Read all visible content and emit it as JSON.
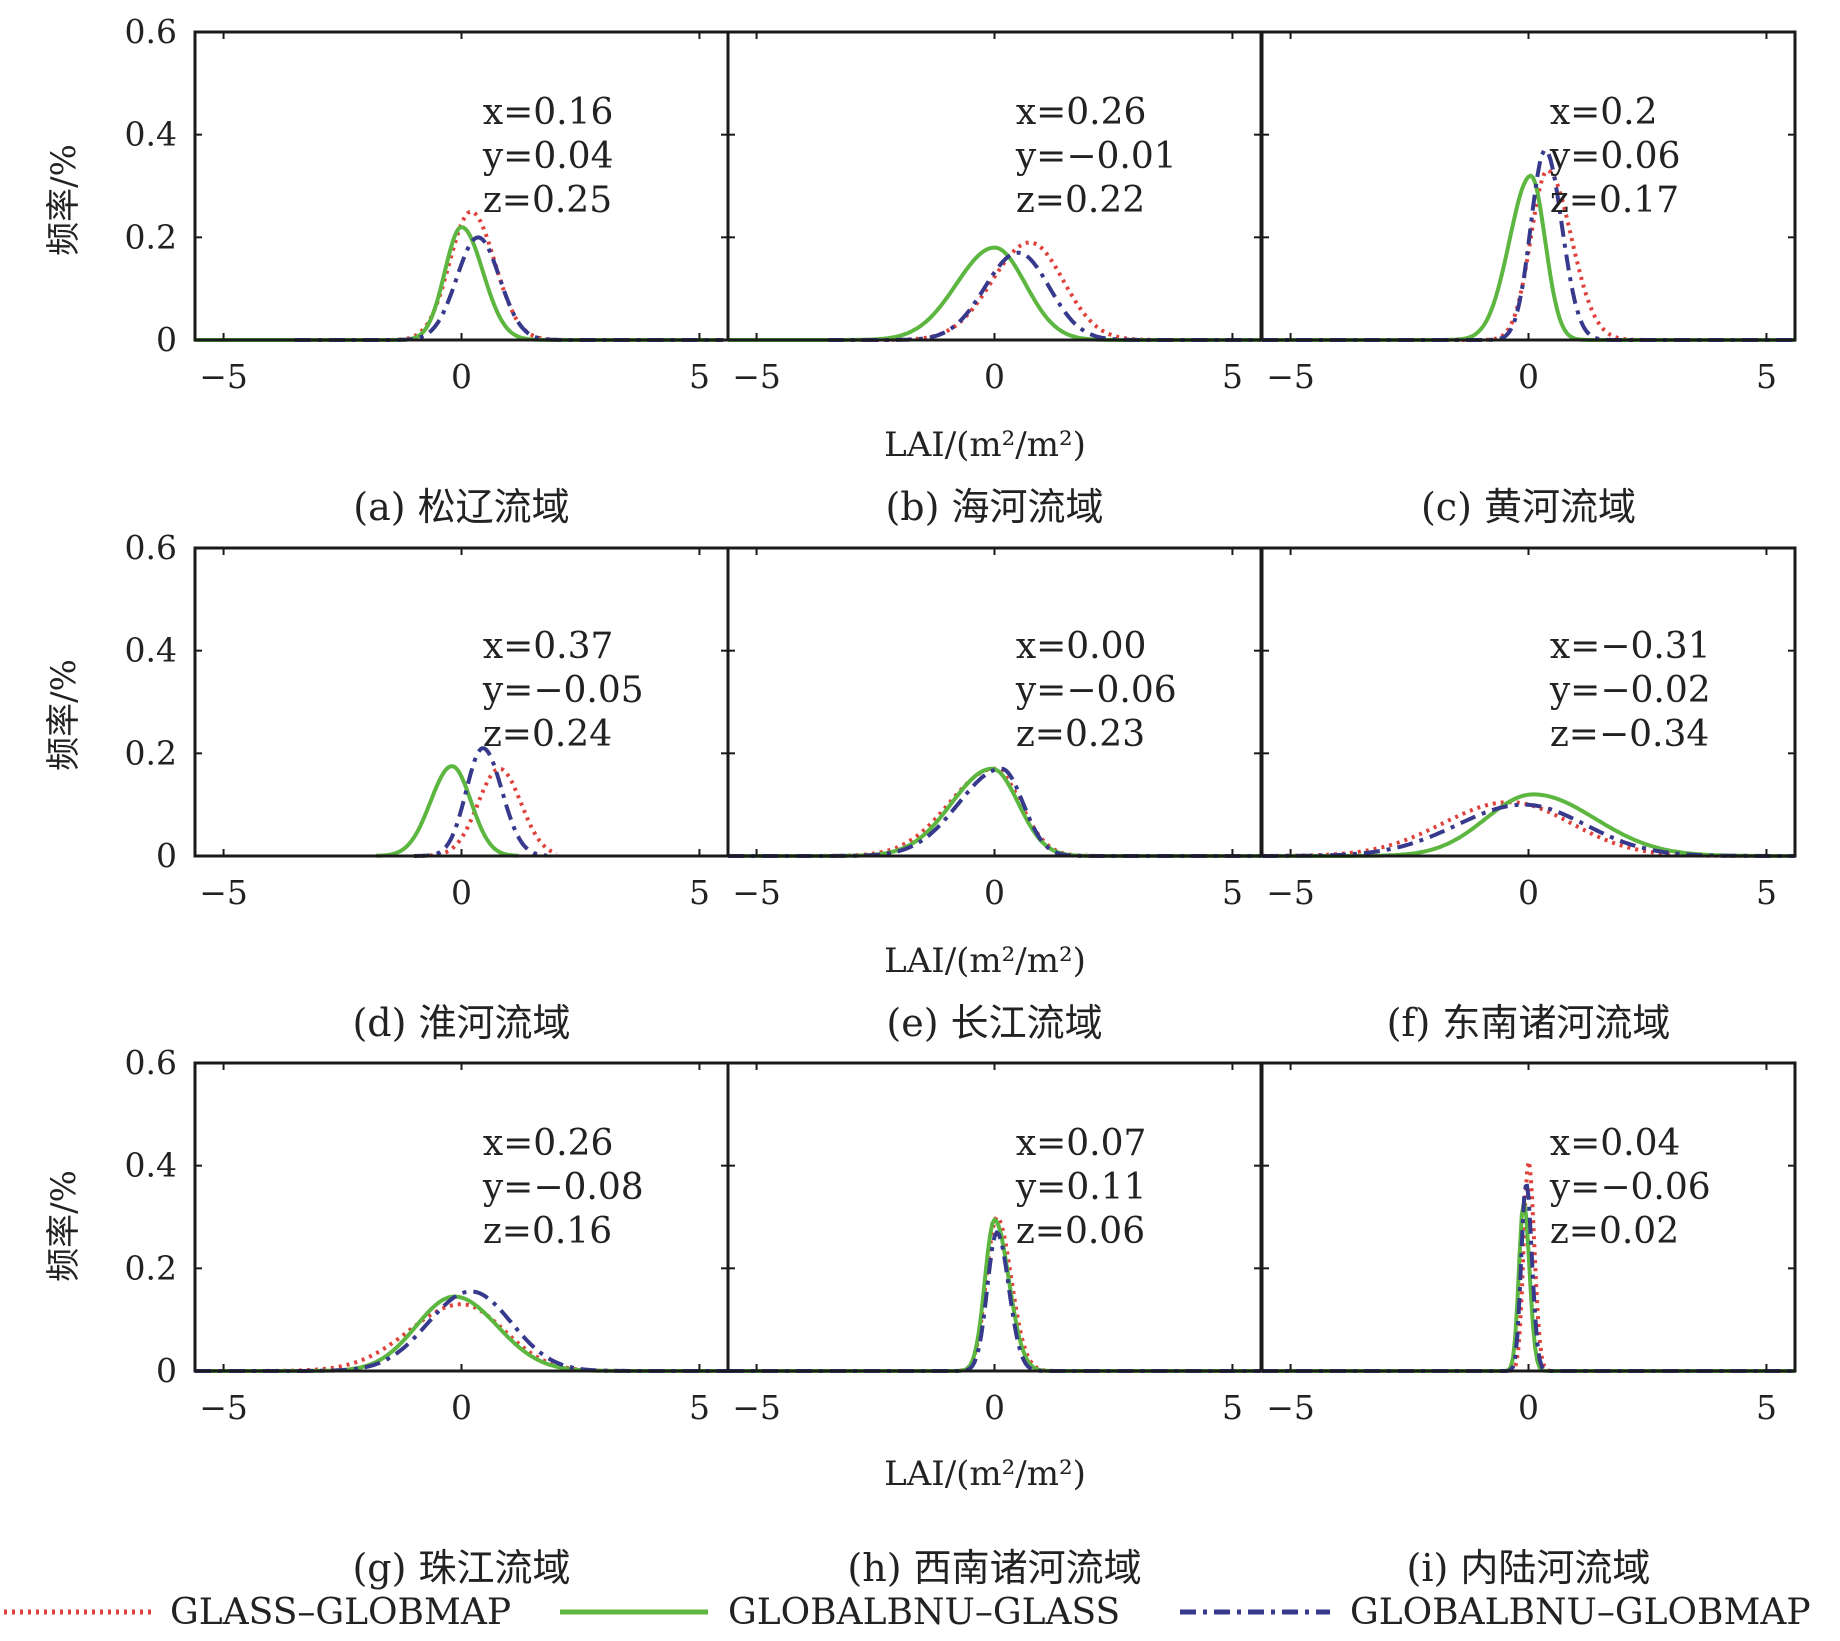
{
  "figure": {
    "y_label": "频率/%",
    "x_label": "LAI/(m²/m²)",
    "legend": [
      {
        "label": "GLASS–GLOBMAP",
        "color": "#e0413a",
        "style": "dotted"
      },
      {
        "label": "GLOBALBNU–GLASS",
        "color": "#5cb640",
        "style": "solid"
      },
      {
        "label": "GLOBALBNU–GLOBMAP",
        "color": "#36398c",
        "style": "dashdot"
      }
    ]
  },
  "chart_data": [
    {
      "type": "line",
      "caption": "(a) 松辽流域",
      "xlim": [
        -5.6,
        5.6
      ],
      "ylim": [
        0,
        0.6
      ],
      "xticks": [
        "−5",
        "0",
        "5"
      ],
      "yticks": [
        "0",
        "0.2",
        "0.4",
        "0.6"
      ],
      "stats": [
        "x=0.16",
        "y=0.04",
        "z=0.25"
      ],
      "series": [
        {
          "name": "GLASS–GLOBMAP",
          "peak_x": 0.2,
          "peak_y": 0.25,
          "width_left": 0.45,
          "width_right": 0.5,
          "range": [
            -3.5,
            5.5
          ]
        },
        {
          "name": "GLOBALBNU–GLASS",
          "peak_x": 0.0,
          "peak_y": 0.22,
          "width_left": 0.35,
          "width_right": 0.45,
          "range": [
            -5.6,
            5.5
          ]
        },
        {
          "name": "GLOBALBNU–GLOBMAP",
          "peak_x": 0.35,
          "peak_y": 0.2,
          "width_left": 0.45,
          "width_right": 0.45,
          "range": [
            -3.5,
            5.5
          ]
        }
      ]
    },
    {
      "type": "line",
      "caption": "(b) 海河流域",
      "xlim": [
        -5.6,
        5.6
      ],
      "ylim": [
        0,
        0.6
      ],
      "xticks": [
        "−5",
        "0",
        "5"
      ],
      "yticks": [
        "0",
        "0.2",
        "0.4",
        "0.6"
      ],
      "stats": [
        "x=0.26",
        "y=−0.01",
        "z=0.22"
      ],
      "series": [
        {
          "name": "GLASS–GLOBMAP",
          "peak_x": 0.75,
          "peak_y": 0.19,
          "width_left": 0.8,
          "width_right": 0.7,
          "range": [
            -3.5,
            5.6
          ]
        },
        {
          "name": "GLOBALBNU–GLASS",
          "peak_x": 0.0,
          "peak_y": 0.18,
          "width_left": 0.8,
          "width_right": 0.65,
          "range": [
            -5.6,
            5.6
          ]
        },
        {
          "name": "GLOBALBNU–GLOBMAP",
          "peak_x": 0.5,
          "peak_y": 0.17,
          "width_left": 0.7,
          "width_right": 0.65,
          "range": [
            -3.5,
            5.6
          ]
        }
      ]
    },
    {
      "type": "line",
      "caption": "(c) 黄河流域",
      "xlim": [
        -5.6,
        5.6
      ],
      "ylim": [
        0,
        0.6
      ],
      "xticks": [
        "−5",
        "0",
        "5"
      ],
      "yticks": [
        "0",
        "0.2",
        "0.4",
        "0.6"
      ],
      "stats": [
        "x=0.2",
        "y=0.06",
        "z=0.17"
      ],
      "series": [
        {
          "name": "GLASS–GLOBMAP",
          "peak_x": 0.4,
          "peak_y": 0.33,
          "width_left": 0.35,
          "width_right": 0.5,
          "range": [
            -5.6,
            5.6
          ]
        },
        {
          "name": "GLOBALBNU–GLASS",
          "peak_x": 0.05,
          "peak_y": 0.32,
          "width_left": 0.45,
          "width_right": 0.3,
          "range": [
            -5.6,
            5.6
          ]
        },
        {
          "name": "GLOBALBNU–GLOBMAP",
          "peak_x": 0.35,
          "peak_y": 0.37,
          "width_left": 0.3,
          "width_right": 0.35,
          "range": [
            -5.6,
            5.6
          ]
        }
      ]
    },
    {
      "type": "line",
      "caption": "(d) 淮河流域",
      "xlim": [
        -5.6,
        5.6
      ],
      "ylim": [
        0,
        0.6
      ],
      "xticks": [
        "−5",
        "0",
        "5"
      ],
      "yticks": [
        "0",
        "0.2",
        "0.4",
        "0.6"
      ],
      "stats": [
        "x=0.37",
        "y=−0.05",
        "z=0.24"
      ],
      "series": [
        {
          "name": "GLASS–GLOBMAP",
          "peak_x": 0.8,
          "peak_y": 0.17,
          "width_left": 0.45,
          "width_right": 0.45,
          "range": [
            -1.0,
            2.0
          ]
        },
        {
          "name": "GLOBALBNU–GLASS",
          "peak_x": -0.2,
          "peak_y": 0.175,
          "width_left": 0.45,
          "width_right": 0.4,
          "range": [
            -1.8,
            1.2
          ]
        },
        {
          "name": "GLOBALBNU–GLOBMAP",
          "peak_x": 0.45,
          "peak_y": 0.21,
          "width_left": 0.35,
          "width_right": 0.4,
          "range": [
            -1.0,
            1.8
          ]
        }
      ]
    },
    {
      "type": "line",
      "caption": "(e) 长江流域",
      "xlim": [
        -5.6,
        5.6
      ],
      "ylim": [
        0,
        0.6
      ],
      "xticks": [
        "−5",
        "0",
        "5"
      ],
      "yticks": [
        "0",
        "0.2",
        "0.4",
        "0.6"
      ],
      "stats": [
        "x=0.00",
        "y=−0.06",
        "z=0.23"
      ],
      "series": [
        {
          "name": "GLASS–GLOBMAP",
          "peak_x": 0.0,
          "peak_y": 0.17,
          "width_left": 0.95,
          "width_right": 0.55,
          "range": [
            -5.6,
            5.6
          ]
        },
        {
          "name": "GLOBALBNU–GLASS",
          "peak_x": -0.05,
          "peak_y": 0.17,
          "width_left": 0.85,
          "width_right": 0.55,
          "range": [
            -5.6,
            5.6
          ]
        },
        {
          "name": "GLOBALBNU–GLOBMAP",
          "peak_x": 0.15,
          "peak_y": 0.17,
          "width_left": 0.9,
          "width_right": 0.45,
          "range": [
            -5.6,
            5.6
          ]
        }
      ]
    },
    {
      "type": "line",
      "caption": "(f) 东南诸河流域",
      "xlim": [
        -5.6,
        5.6
      ],
      "ylim": [
        0,
        0.6
      ],
      "xticks": [
        "−5",
        "0",
        "5"
      ],
      "yticks": [
        "0",
        "0.2",
        "0.4",
        "0.6"
      ],
      "stats": [
        "x=−0.31",
        "y=−0.02",
        "z=−0.34"
      ],
      "series": [
        {
          "name": "GLASS–GLOBMAP",
          "peak_x": -0.4,
          "peak_y": 0.105,
          "width_left": 1.4,
          "width_right": 1.3,
          "range": [
            -5.6,
            5.6
          ]
        },
        {
          "name": "GLOBALBNU–GLASS",
          "peak_x": 0.1,
          "peak_y": 0.12,
          "width_left": 1.0,
          "width_right": 1.3,
          "range": [
            -5.6,
            5.6
          ]
        },
        {
          "name": "GLOBALBNU–GLOBMAP",
          "peak_x": -0.1,
          "peak_y": 0.1,
          "width_left": 1.4,
          "width_right": 1.3,
          "range": [
            -5.6,
            5.6
          ]
        }
      ]
    },
    {
      "type": "line",
      "caption": "(g) 珠江流域",
      "xlim": [
        -5.6,
        5.6
      ],
      "ylim": [
        0,
        0.6
      ],
      "xticks": [
        "−5",
        "0",
        "5"
      ],
      "yticks": [
        "0",
        "0.2",
        "0.4",
        "0.6"
      ],
      "stats": [
        "x=0.26",
        "y=−0.08",
        "z=0.16"
      ],
      "series": [
        {
          "name": "GLASS–GLOBMAP",
          "peak_x": 0.0,
          "peak_y": 0.13,
          "width_left": 1.1,
          "width_right": 0.9,
          "range": [
            -5.6,
            5.6
          ]
        },
        {
          "name": "GLOBALBNU–GLASS",
          "peak_x": -0.15,
          "peak_y": 0.145,
          "width_left": 0.8,
          "width_right": 0.9,
          "range": [
            -5.6,
            5.6
          ]
        },
        {
          "name": "GLOBALBNU–GLOBMAP",
          "peak_x": 0.2,
          "peak_y": 0.155,
          "width_left": 0.9,
          "width_right": 0.85,
          "range": [
            -5.6,
            5.6
          ]
        }
      ]
    },
    {
      "type": "line",
      "caption": "(h) 西南诸河流域",
      "xlim": [
        -5.6,
        5.6
      ],
      "ylim": [
        0,
        0.6
      ],
      "xticks": [
        "−5",
        "0",
        "5"
      ],
      "yticks": [
        "0",
        "0.2",
        "0.4",
        "0.6"
      ],
      "stats": [
        "x=0.07",
        "y=0.11",
        "z=0.06"
      ],
      "series": [
        {
          "name": "GLASS–GLOBMAP",
          "peak_x": 0.05,
          "peak_y": 0.3,
          "width_left": 0.22,
          "width_right": 0.3,
          "range": [
            -5.6,
            5.6
          ]
        },
        {
          "name": "GLOBALBNU–GLASS",
          "peak_x": 0.0,
          "peak_y": 0.295,
          "width_left": 0.2,
          "width_right": 0.3,
          "range": [
            -5.6,
            5.6
          ]
        },
        {
          "name": "GLOBALBNU–GLOBMAP",
          "peak_x": 0.05,
          "peak_y": 0.27,
          "width_left": 0.2,
          "width_right": 0.25,
          "range": [
            -5.6,
            5.6
          ]
        }
      ]
    },
    {
      "type": "line",
      "caption": "(i) 内陆河流域",
      "xlim": [
        -5.6,
        5.6
      ],
      "ylim": [
        0,
        0.6
      ],
      "xticks": [
        "−5",
        "0",
        "5"
      ],
      "yticks": [
        "0",
        "0.2",
        "0.4",
        "0.6"
      ],
      "stats": [
        "x=0.04",
        "y=−0.06",
        "z=0.02"
      ],
      "series": [
        {
          "name": "GLASS–GLOBMAP",
          "peak_x": 0.0,
          "peak_y": 0.41,
          "width_left": 0.1,
          "width_right": 0.12,
          "range": [
            -5.6,
            3.5
          ]
        },
        {
          "name": "GLOBALBNU–GLASS",
          "peak_x": -0.1,
          "peak_y": 0.33,
          "width_left": 0.1,
          "width_right": 0.12,
          "range": [
            -5.6,
            5.6
          ]
        },
        {
          "name": "GLOBALBNU–GLOBMAP",
          "peak_x": -0.05,
          "peak_y": 0.37,
          "width_left": 0.1,
          "width_right": 0.12,
          "range": [
            -5.6,
            5.6
          ]
        }
      ]
    }
  ]
}
